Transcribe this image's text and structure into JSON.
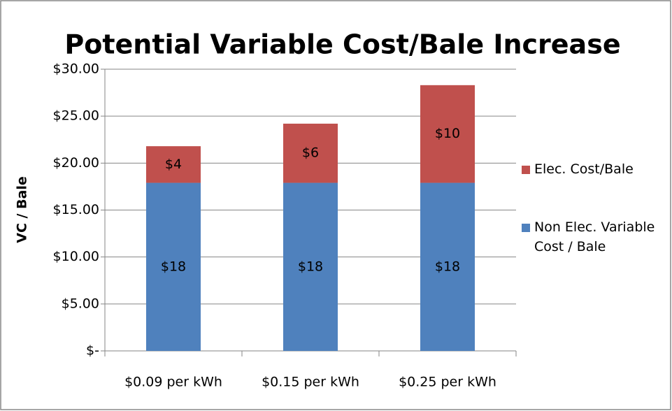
{
  "chart_data": {
    "type": "stacked_bar",
    "title": "Potential Variable Cost/Bale Increase",
    "y_label": "VC / Bale",
    "categories": [
      "$0.09 per kWh",
      "$0.15 per kWh",
      "$0.25 per kWh"
    ],
    "series": [
      {
        "name": "Non Elec. Variable Cost / Bale",
        "color": "#4f81bd",
        "values": [
          17.9,
          17.9,
          17.9
        ],
        "value_labels": [
          "$18",
          "$18",
          "$18"
        ]
      },
      {
        "name": "Elec. Cost/Bale",
        "color": "#c0504d",
        "values": [
          3.9,
          6.3,
          10.4
        ],
        "value_labels": [
          "$4",
          "$6",
          "$10"
        ]
      }
    ],
    "ylim": [
      0,
      30
    ],
    "yticks": [
      {
        "value": 0,
        "label": "$-"
      },
      {
        "value": 5,
        "label": "$5.00"
      },
      {
        "value": 10,
        "label": "$10.00"
      },
      {
        "value": 15,
        "label": "$15.00"
      },
      {
        "value": 20,
        "label": "$20.00"
      },
      {
        "value": 25,
        "label": "$25.00"
      },
      {
        "value": 30,
        "label": "$30.00"
      }
    ],
    "grid": true,
    "legend": "right"
  }
}
